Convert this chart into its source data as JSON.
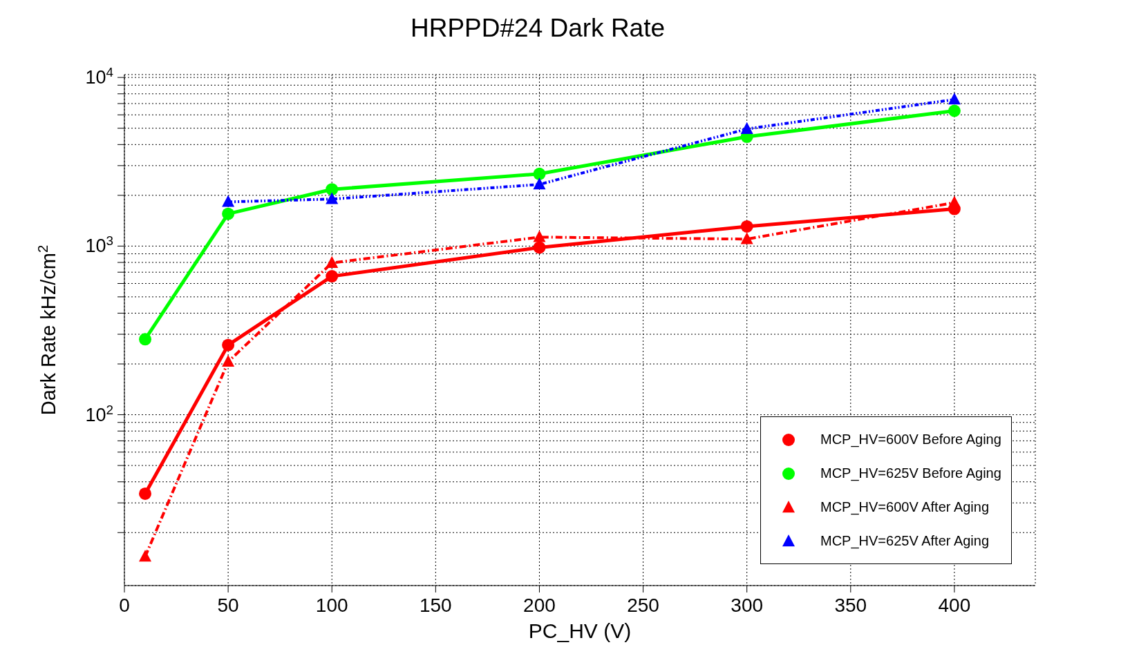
{
  "chart_data": {
    "type": "line",
    "title": "HRPPD#24 Dark Rate",
    "xlabel": "PC_HV (V)",
    "ylabel": "Dark Rate kHz/cm$^{2}$",
    "x": [
      10,
      50,
      100,
      200,
      300,
      400
    ],
    "series": [
      {
        "name": "MCP_HV=600V Before Aging",
        "color": "#ff0000",
        "marker": "circle",
        "line_style": "solid",
        "values": [
          34,
          259,
          662,
          981,
          1307,
          1660
        ]
      },
      {
        "name": "MCP_HV=625V Before Aging",
        "color": "#00ff00",
        "marker": "circle",
        "line_style": "solid",
        "values": [
          280,
          1553,
          2170,
          2680,
          4450,
          6340
        ]
      },
      {
        "name": "MCP_HV=600V After Aging",
        "color": "#ff0000",
        "marker": "triangle",
        "line_style": "dashed",
        "values": [
          14.4,
          206,
          795,
          1130,
          1100,
          1810
        ]
      },
      {
        "name": "MCP_HV=625V After Aging",
        "color": "#0000ff",
        "marker": "triangle",
        "line_style": "dotted",
        "values": [
          null,
          1828,
          1900,
          2320,
          4950,
          7400
        ]
      }
    ],
    "log": "y",
    "xlim": [
      0,
      439
    ],
    "ylim": [
      9.7,
      10400
    ],
    "xticks": [
      0,
      50,
      100,
      150,
      200,
      250,
      300,
      350,
      400
    ],
    "yticks": [
      {
        "value": 20,
        "label": null
      },
      {
        "value": 30,
        "label": null
      },
      {
        "value": 40,
        "label": null
      },
      {
        "value": 50,
        "label": null
      },
      {
        "value": 60,
        "label": null
      },
      {
        "value": 70,
        "label": null
      },
      {
        "value": 80,
        "label": null
      },
      {
        "value": 90,
        "label": null
      },
      {
        "value": 100,
        "label": "10$^{2}$"
      },
      {
        "value": 200,
        "label": null
      },
      {
        "value": 300,
        "label": null
      },
      {
        "value": 400,
        "label": null
      },
      {
        "value": 500,
        "label": null
      },
      {
        "value": 600,
        "label": null
      },
      {
        "value": 700,
        "label": null
      },
      {
        "value": 800,
        "label": null
      },
      {
        "value": 900,
        "label": null
      },
      {
        "value": 1000,
        "label": "10$^{3}$"
      },
      {
        "value": 2000,
        "label": null
      },
      {
        "value": 3000,
        "label": null
      },
      {
        "value": 4000,
        "label": null
      },
      {
        "value": 5000,
        "label": null
      },
      {
        "value": 6000,
        "label": null
      },
      {
        "value": 7000,
        "label": null
      },
      {
        "value": 8000,
        "label": null
      },
      {
        "value": 9000,
        "label": null
      },
      {
        "value": 10000,
        "label": "10$^{4}$"
      }
    ],
    "grid": true,
    "legend": "bottom right"
  }
}
